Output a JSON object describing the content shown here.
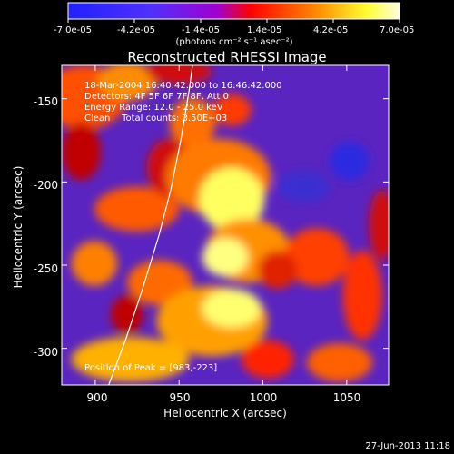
{
  "colorbar": {
    "tick_labels": [
      "-7.0e-05",
      "-4.2e-05",
      "-1.4e-05",
      "1.4e-05",
      "4.2e-05",
      "7.0e-05"
    ],
    "unit_label": "(photons cm⁻² s⁻¹ asec⁻²)",
    "range": [
      -7e-05,
      7e-05
    ]
  },
  "title": "Reconstructed RHESSI Image",
  "annotations": {
    "time_range": "18-Mar-2004 16:40:42.000 to 16:46:42.000",
    "detectors": "Detectors: 4F 5F 6F 7F 8F, Att 0",
    "energy_range": "Energy Range: 12.0 - 25.0 keV",
    "method_counts": "Clean    Total counts: 3.50E+03",
    "peak": "Position of Peak = [983,-223]"
  },
  "footer_date": "27-Jun-2013 11:18",
  "chart_data": {
    "type": "heatmap",
    "title": "Reconstructed RHESSI Image",
    "xlabel": "Heliocentric X (arcsec)",
    "ylabel": "Heliocentric Y (arcsec)",
    "xlim": [
      880,
      1075
    ],
    "ylim": [
      -322,
      -130
    ],
    "x_ticks": [
      900,
      950,
      1000,
      1050
    ],
    "y_ticks": [
      -150,
      -200,
      -250,
      -300
    ],
    "peak": [
      983,
      -223
    ],
    "limb_curve": [
      [
        908,
        -322
      ],
      [
        918,
        -295
      ],
      [
        928,
        -265
      ],
      [
        938,
        -232
      ],
      [
        945,
        -205
      ],
      [
        951,
        -175
      ],
      [
        956,
        -145
      ],
      [
        958,
        -130
      ]
    ],
    "colormap": [
      "#0000ff",
      "#6a00ff",
      "#b700c8",
      "#ff0000",
      "#ff8000",
      "#ffff00",
      "#ffffff"
    ]
  }
}
